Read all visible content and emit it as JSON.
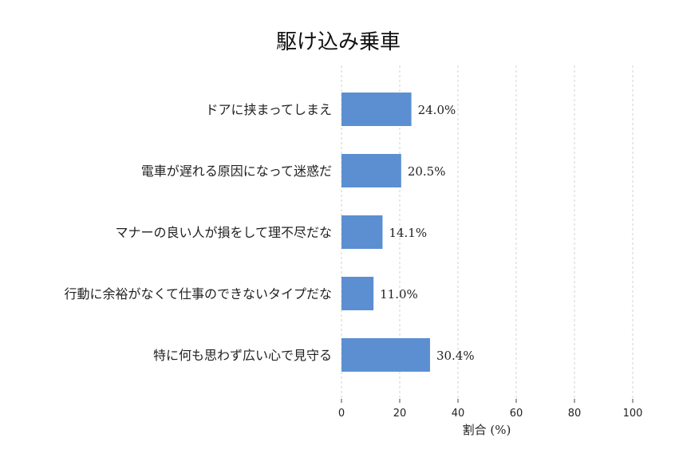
{
  "chart_data": {
    "type": "bar",
    "orientation": "horizontal",
    "title": "駆け込み乗車",
    "xlabel": "割合 (%)",
    "ylabel": "",
    "xlim": [
      0,
      100
    ],
    "xticks": [
      0,
      20,
      40,
      60,
      80,
      100
    ],
    "grid": "x-dashed",
    "categories": [
      "ドアに挟まってしまえ",
      "電車が遅れる原因になって迷惑だ",
      "マナーの良い人が損をして理不尽だな",
      "行動に余裕がなくて仕事のできないタイプだな",
      "特に何も思わず広い心で見守る"
    ],
    "values": [
      24.0,
      20.5,
      14.1,
      11.0,
      30.4
    ],
    "value_labels": [
      "24.0%",
      "20.5%",
      "14.1%",
      "11.0%",
      "30.4%"
    ],
    "bar_color": "#5b8fd1"
  }
}
